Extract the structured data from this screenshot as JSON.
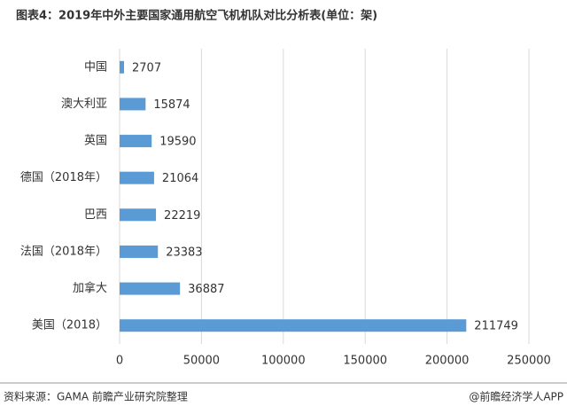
{
  "chart_data": {
    "type": "bar",
    "orientation": "horizontal",
    "title": "图表4：2019年中外主要国家通用航空飞机机队对比分析表(单位：架)",
    "categories": [
      "中国",
      "澳大利亚",
      "英国",
      "德国（2018年）",
      "巴西",
      "法国（2018年）",
      "加拿大",
      "美国（2018）"
    ],
    "values": [
      2707,
      15874,
      19590,
      21064,
      22219,
      23383,
      36887,
      211749
    ],
    "color": "#5b9bd5",
    "xlim": [
      0,
      250000
    ],
    "xticks": [
      0,
      50000,
      100000,
      150000,
      200000,
      250000
    ],
    "grid": true,
    "source": "资料来源：GAMA 前瞻产业研究院整理",
    "credit": "@前瞻经济学人APP"
  }
}
